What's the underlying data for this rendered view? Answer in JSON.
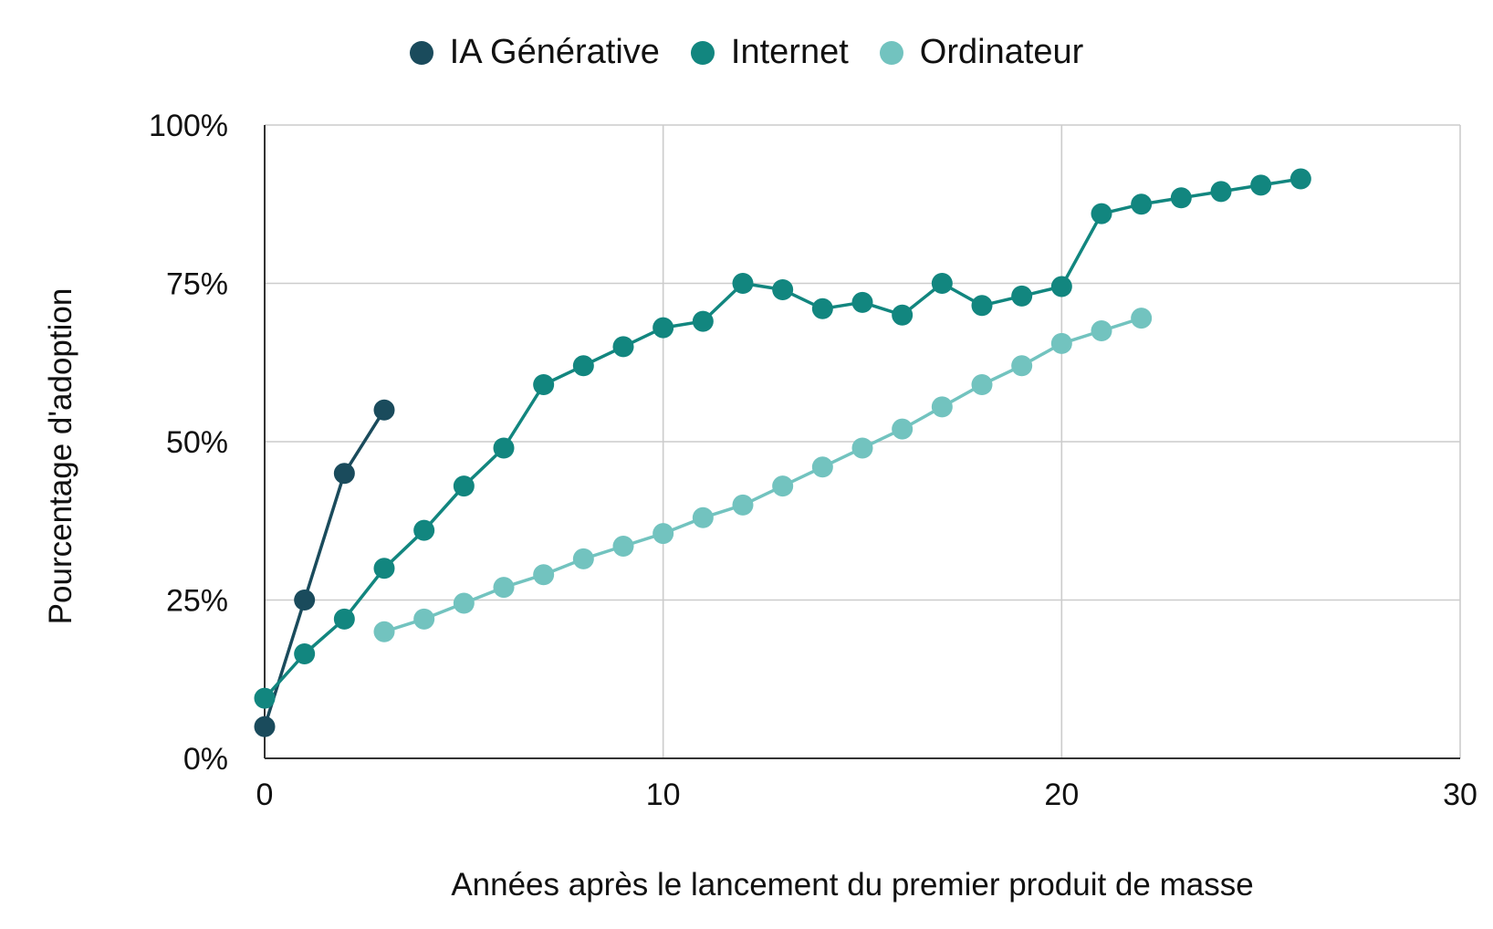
{
  "chart_data": {
    "type": "line",
    "xlabel": "Années après le lancement du premier produit de masse",
    "ylabel": "Pourcentage d'adoption",
    "xlim": [
      0,
      30
    ],
    "ylim": [
      0,
      100
    ],
    "x_ticks": [
      0,
      10,
      20,
      30
    ],
    "x_tick_labels": [
      "0",
      "10",
      "20",
      "30"
    ],
    "y_ticks": [
      0,
      25,
      50,
      75,
      100
    ],
    "y_tick_labels": [
      "0%",
      "25%",
      "50%",
      "75%",
      "100%"
    ],
    "grid": true,
    "legend_position": "top-center",
    "series": [
      {
        "name": "IA Générative",
        "color": "#1a4b5c",
        "x": [
          0,
          1,
          2,
          3
        ],
        "y": [
          5,
          25,
          45,
          55
        ]
      },
      {
        "name": "Internet",
        "color": "#12867f",
        "x": [
          0,
          1,
          2,
          3,
          4,
          5,
          6,
          7,
          8,
          9,
          10,
          11,
          12,
          13,
          14,
          15,
          16,
          17,
          18,
          19,
          20,
          21,
          22,
          23,
          24,
          25,
          26
        ],
        "y": [
          9.5,
          16.5,
          22,
          30,
          36,
          43,
          49,
          59,
          62,
          65,
          68,
          69,
          75,
          74,
          71,
          72,
          70,
          75,
          71.5,
          73,
          74.5,
          86,
          87.5,
          88.5,
          89.5,
          90.5,
          91.5
        ]
      },
      {
        "name": "Ordinateur",
        "color": "#72c3bf",
        "x": [
          3,
          4,
          5,
          6,
          7,
          8,
          9,
          10,
          11,
          12,
          13,
          14,
          15,
          16,
          17,
          18,
          19,
          20,
          21,
          22
        ],
        "y": [
          20,
          22,
          24.5,
          27,
          29,
          31.5,
          33.5,
          35.5,
          38,
          40,
          43,
          46,
          49,
          52,
          55.5,
          59,
          62,
          65.5,
          67.5,
          69.5
        ]
      }
    ]
  }
}
